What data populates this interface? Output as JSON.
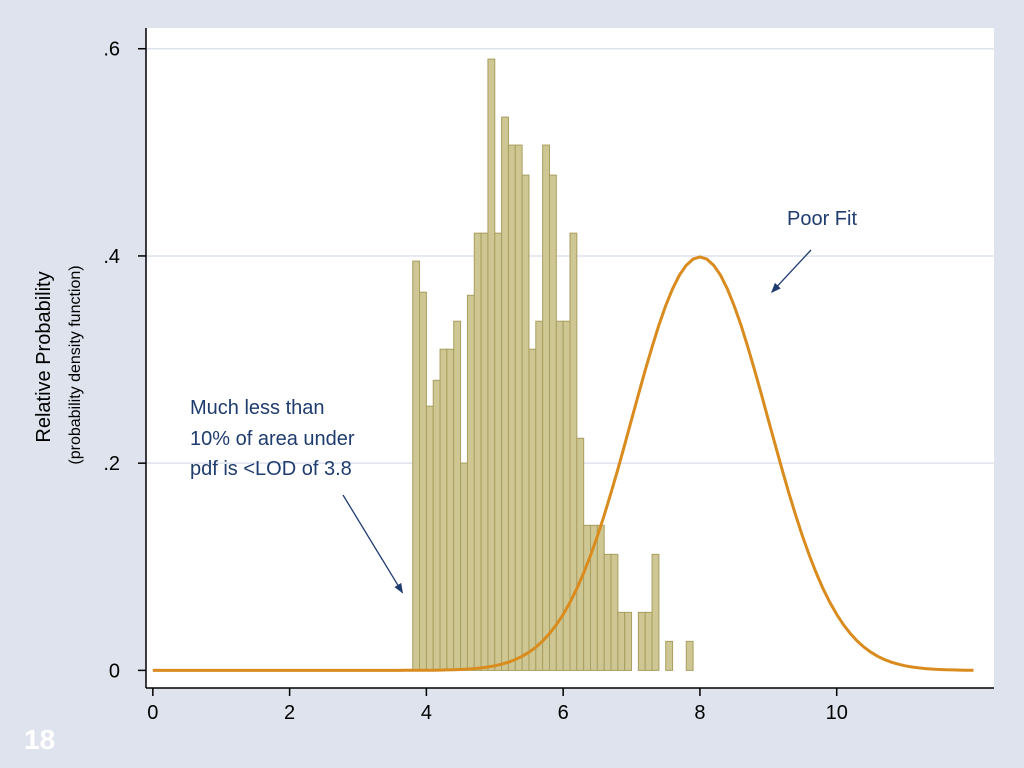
{
  "slide": {
    "number": "18",
    "background_color": "#dfe3ee"
  },
  "chart_data": {
    "type": "bar",
    "ylabel": "Relative Probability",
    "ylabel_sub": "(probability density function)",
    "xlim": [
      -0.1,
      12.3
    ],
    "ylim": [
      -0.017,
      0.62
    ],
    "x_ticks": [
      0,
      2,
      4,
      6,
      8,
      10
    ],
    "x_tick_labels": [
      "0",
      "2",
      "4",
      "6",
      "8",
      "10"
    ],
    "y_ticks": [
      0,
      0.2,
      0.4,
      0.6
    ],
    "y_tick_labels": [
      "0",
      ".2",
      ".4",
      ".6"
    ],
    "grid": true,
    "series": [
      {
        "kind": "histogram",
        "color": "#cfc793",
        "edge_color": "#a89e5e",
        "bin_width": 0.1,
        "bins": [
          {
            "x": 3.85,
            "y": 0.395
          },
          {
            "x": 3.95,
            "y": 0.365
          },
          {
            "x": 4.05,
            "y": 0.255
          },
          {
            "x": 4.15,
            "y": 0.28
          },
          {
            "x": 4.25,
            "y": 0.31
          },
          {
            "x": 4.35,
            "y": 0.31
          },
          {
            "x": 4.45,
            "y": 0.337
          },
          {
            "x": 4.55,
            "y": 0.2
          },
          {
            "x": 4.65,
            "y": 0.362
          },
          {
            "x": 4.75,
            "y": 0.422
          },
          {
            "x": 4.85,
            "y": 0.422
          },
          {
            "x": 4.95,
            "y": 0.59
          },
          {
            "x": 5.05,
            "y": 0.422
          },
          {
            "x": 5.15,
            "y": 0.534
          },
          {
            "x": 5.25,
            "y": 0.507
          },
          {
            "x": 5.35,
            "y": 0.507
          },
          {
            "x": 5.45,
            "y": 0.478
          },
          {
            "x": 5.55,
            "y": 0.31
          },
          {
            "x": 5.65,
            "y": 0.337
          },
          {
            "x": 5.75,
            "y": 0.507
          },
          {
            "x": 5.85,
            "y": 0.478
          },
          {
            "x": 5.95,
            "y": 0.337
          },
          {
            "x": 6.05,
            "y": 0.337
          },
          {
            "x": 6.15,
            "y": 0.422
          },
          {
            "x": 6.25,
            "y": 0.224
          },
          {
            "x": 6.35,
            "y": 0.14
          },
          {
            "x": 6.45,
            "y": 0.14
          },
          {
            "x": 6.55,
            "y": 0.14
          },
          {
            "x": 6.65,
            "y": 0.112
          },
          {
            "x": 6.75,
            "y": 0.112
          },
          {
            "x": 6.85,
            "y": 0.056
          },
          {
            "x": 6.95,
            "y": 0.056
          },
          {
            "x": 7.15,
            "y": 0.056
          },
          {
            "x": 7.25,
            "y": 0.056
          },
          {
            "x": 7.35,
            "y": 0.112
          },
          {
            "x": 7.55,
            "y": 0.028
          },
          {
            "x": 7.85,
            "y": 0.028
          }
        ]
      },
      {
        "kind": "line",
        "color": "#d98b1e",
        "mean": 8,
        "sd": 1,
        "x_range": [
          0,
          12
        ],
        "points": 121
      }
    ],
    "annotations": [
      {
        "lines": [
          "Much  less than",
          "10% of area under",
          "pdf is <LOD of 3.8"
        ],
        "arrow_to": {
          "x": 3.65,
          "y": 0.075
        }
      },
      {
        "lines": [
          "Poor Fit"
        ],
        "arrow_to": {
          "x": 9.05,
          "y": 0.365
        }
      }
    ]
  }
}
